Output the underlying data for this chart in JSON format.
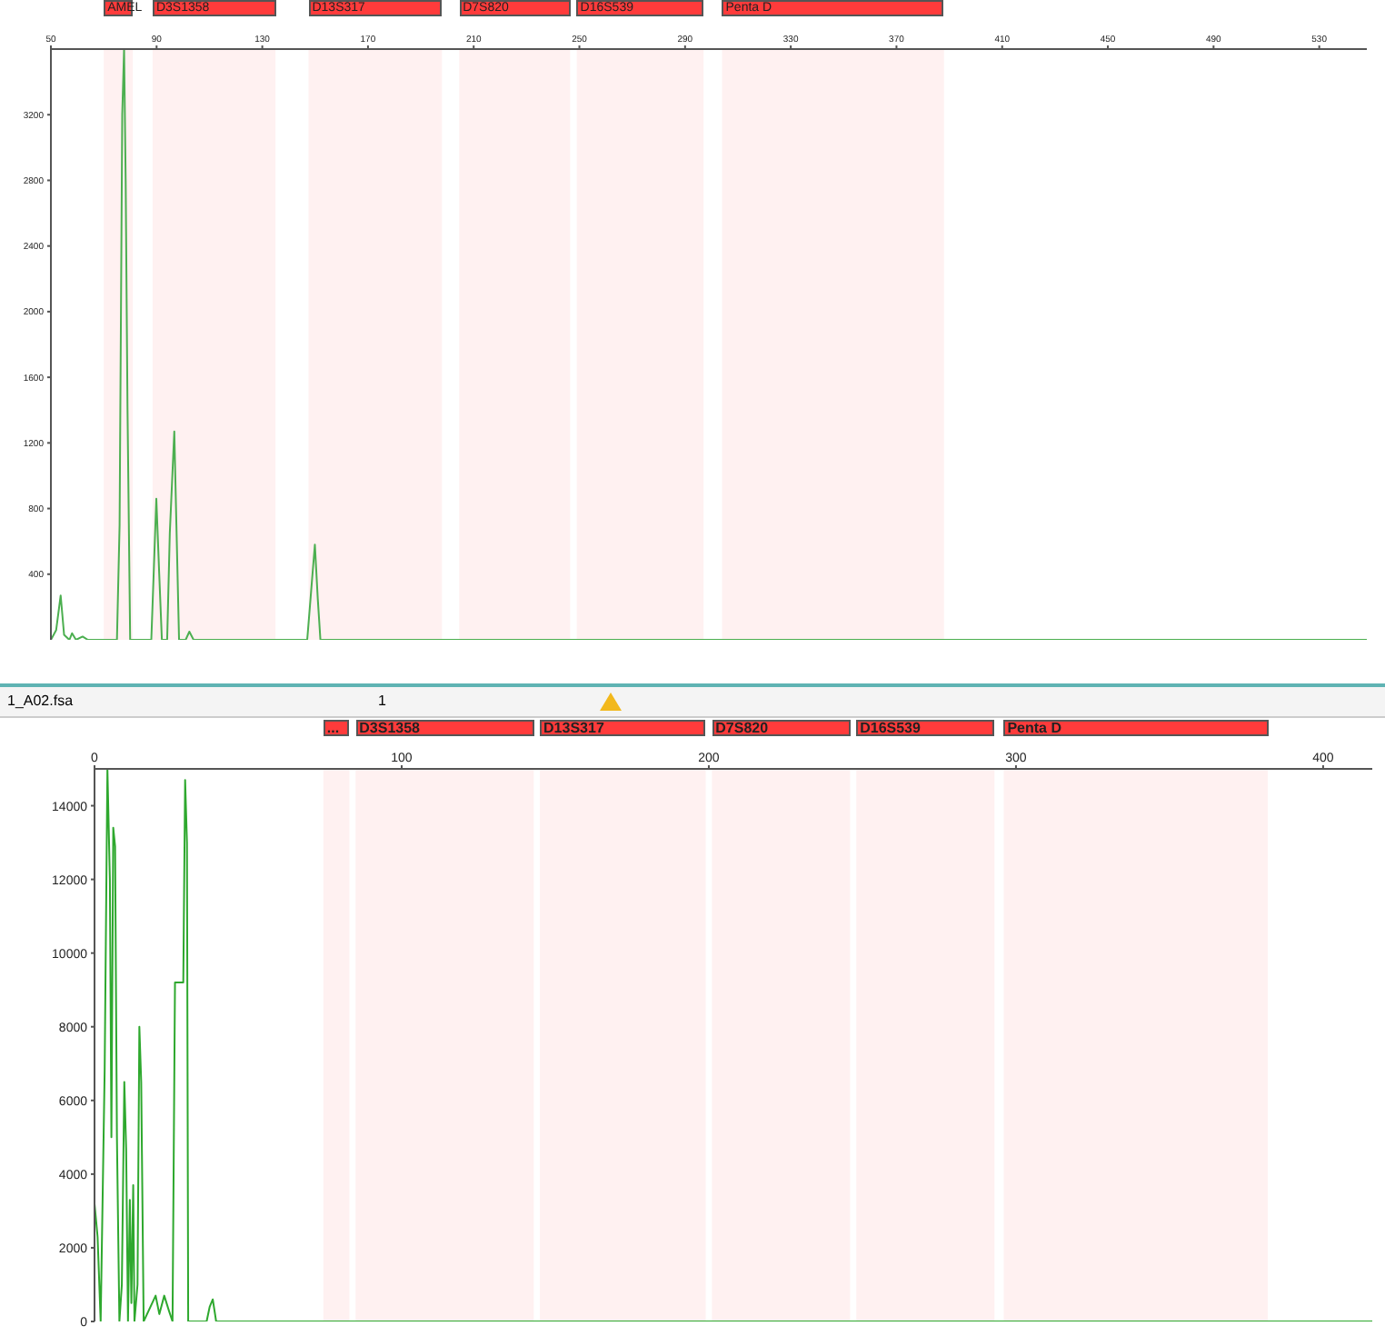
{
  "chart_data": [
    {
      "type": "line",
      "xlim": [
        50,
        548
      ],
      "xticks": [
        50,
        90,
        130,
        170,
        210,
        250,
        290,
        330,
        370,
        410,
        450,
        490,
        530
      ],
      "ylim": [
        0,
        3600
      ],
      "yticks": [
        400,
        800,
        1200,
        1600,
        2000,
        2400,
        2800,
        3200
      ],
      "marker": "none",
      "bands": [
        {
          "axis": "x",
          "from": 70,
          "to": 81,
          "label": "AMEL",
          "color": "#ff3b3b"
        },
        {
          "axis": "x",
          "from": 88.5,
          "to": 135,
          "label": "D3S1358",
          "color": "#ff3b3b"
        },
        {
          "axis": "x",
          "from": 147.5,
          "to": 198,
          "label": "D13S317",
          "color": "#ff3b3b"
        },
        {
          "axis": "x",
          "from": 204.5,
          "to": 246.5,
          "label": "D7S820",
          "color": "#ff3b3b"
        },
        {
          "axis": "x",
          "from": 249,
          "to": 297,
          "label": "D16S539",
          "color": "#ff3b3b"
        },
        {
          "axis": "x",
          "from": 304,
          "to": 388,
          "label": "Penta D",
          "color": "#ff3b3b"
        }
      ],
      "series": [
        {
          "color": "#4caf50",
          "x": [
            50,
            52,
            53.7,
            55,
            57,
            58,
            59.5,
            62,
            64,
            75,
            76,
            77,
            77.7,
            78.3,
            79,
            80,
            88,
            89,
            89.9,
            91,
            92,
            94,
            95,
            96.7,
            97.5,
            98.5,
            101,
            102.4,
            104,
            147,
            148.5,
            149.9,
            151,
            152,
            548
          ],
          "values": [
            0,
            60,
            270,
            30,
            0,
            40,
            0,
            20,
            0,
            0,
            700,
            3200,
            3600,
            2800,
            1400,
            0,
            0,
            450,
            860,
            400,
            0,
            0,
            650,
            1270,
            700,
            0,
            0,
            50,
            0,
            0,
            300,
            580,
            250,
            0,
            0
          ]
        }
      ]
    },
    {
      "type": "line",
      "xlim": [
        0,
        416
      ],
      "xticks": [
        0,
        100,
        200,
        300,
        400
      ],
      "ylim": [
        0,
        15000
      ],
      "yticks": [
        0,
        2000,
        4000,
        6000,
        8000,
        10000,
        12000,
        14000
      ],
      "marker": "none",
      "annotations": [
        "1_A02.fsa",
        "1"
      ],
      "bands": [
        {
          "axis": "x",
          "from": 74.5,
          "to": 83,
          "label": "...",
          "color": "#ff3b3b"
        },
        {
          "axis": "x",
          "from": 85,
          "to": 143,
          "label": "D3S1358",
          "color": "#ff3b3b"
        },
        {
          "axis": "x",
          "from": 145,
          "to": 199,
          "label": "D13S317",
          "color": "#ff3b3b"
        },
        {
          "axis": "x",
          "from": 201,
          "to": 246,
          "label": "D7S820",
          "color": "#ff3b3b"
        },
        {
          "axis": "x",
          "from": 248,
          "to": 293,
          "label": "D16S539",
          "color": "#ff3b3b"
        },
        {
          "axis": "x",
          "from": 296,
          "to": 382,
          "label": "Penta D",
          "color": "#ff3b3b"
        }
      ],
      "series": [
        {
          "color": "#2ea82e",
          "x": [
            0,
            1,
            2,
            3.3,
            4.2,
            5,
            5.5,
            6.1,
            6.7,
            7.3,
            8.1,
            8.9,
            9.7,
            10.3,
            10.9,
            11.5,
            12,
            12.6,
            13,
            14,
            14.6,
            15.2,
            16,
            19.9,
            21.1,
            22.7,
            24.2,
            25.4,
            26.2,
            28.9,
            29.5,
            30.1,
            30.5,
            36.5,
            37.5,
            38.5,
            39.6,
            416
          ],
          "values": [
            3200,
            2300,
            0,
            6800,
            15000,
            12000,
            5000,
            13400,
            12900,
            5000,
            0,
            1000,
            6500,
            4700,
            0,
            3300,
            500,
            3700,
            0,
            1000,
            8000,
            6500,
            0,
            700,
            200,
            700,
            300,
            0,
            9200,
            9200,
            14700,
            13000,
            0,
            0,
            400,
            600,
            0,
            0
          ]
        }
      ]
    }
  ]
}
